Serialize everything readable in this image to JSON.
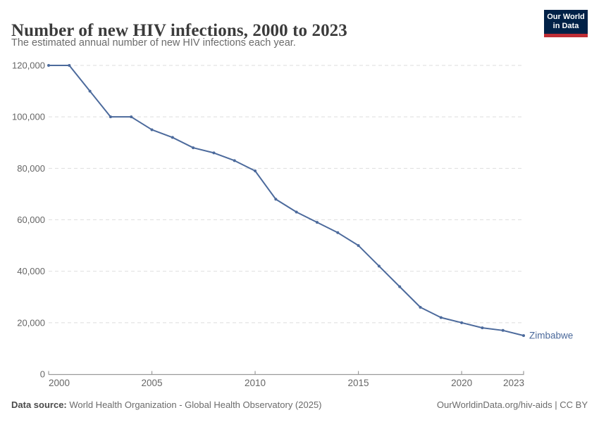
{
  "header": {
    "title": "Number of new HIV infections, 2000 to 2023",
    "subtitle": "The estimated annual number of new HIV infections each year.",
    "logo_line1": "Our World",
    "logo_line2": "in Data"
  },
  "chart_data": {
    "type": "line",
    "title": "Number of new HIV infections, 2000 to 2023",
    "xlabel": "",
    "ylabel": "",
    "xlim": [
      2000,
      2023
    ],
    "ylim": [
      0,
      120000
    ],
    "x_ticks": [
      2000,
      2005,
      2010,
      2015,
      2020,
      2023
    ],
    "y_ticks": [
      0,
      20000,
      40000,
      60000,
      80000,
      100000,
      120000
    ],
    "grid": "horizontal-dashed",
    "legend_position": "end-of-line-label",
    "x": [
      2000,
      2001,
      2002,
      2003,
      2004,
      2005,
      2006,
      2007,
      2008,
      2009,
      2010,
      2011,
      2012,
      2013,
      2014,
      2015,
      2016,
      2017,
      2018,
      2019,
      2020,
      2021,
      2022,
      2023
    ],
    "series": [
      {
        "name": "Zimbabwe",
        "color": "#4C6A9C",
        "values": [
          120000,
          120000,
          110000,
          100000,
          100000,
          95000,
          92000,
          88000,
          86000,
          83000,
          79000,
          68000,
          63000,
          59000,
          55000,
          50000,
          42000,
          34000,
          26000,
          22000,
          20000,
          18000,
          17000,
          15000
        ]
      }
    ]
  },
  "footer": {
    "source_label": "Data source:",
    "source_text": " World Health Organization - Global Health Observatory (2025)",
    "credit": "OurWorldinData.org/hiv-aids | CC BY"
  },
  "colors": {
    "line": "#4C6A9C",
    "logo_navy": "#002147",
    "logo_red": "#be2d35",
    "grid": "#dedede",
    "axis": "#9a9a9a",
    "tick_label": "#666666",
    "title_text": "#3b3b3b",
    "subtitle_text": "#6b6b6b"
  }
}
